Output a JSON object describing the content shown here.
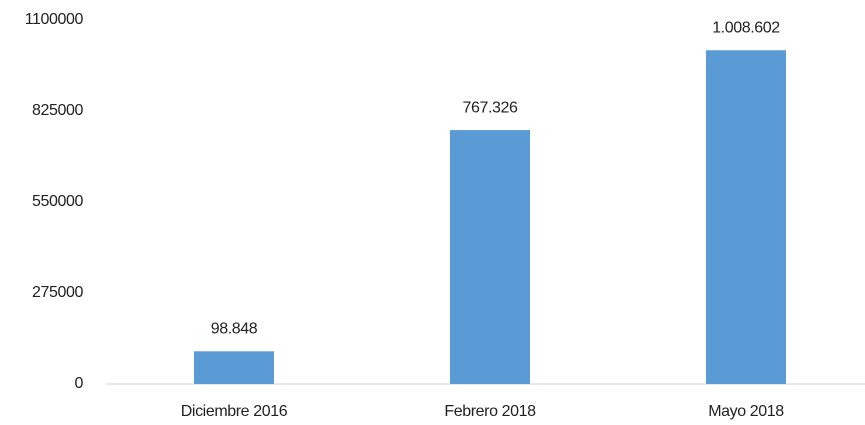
{
  "chart_data": {
    "type": "bar",
    "categories": [
      "Diciembre 2016",
      "Febrero 2018",
      "Mayo 2018"
    ],
    "values": [
      98848,
      767326,
      1008602
    ],
    "value_labels": [
      "98.848",
      "767.326",
      "1.008.602"
    ],
    "color": "#5b9bd5",
    "ylim": [
      0,
      1100000
    ],
    "yticks": [
      0,
      275000,
      550000,
      825000,
      1100000
    ],
    "grid": false
  }
}
